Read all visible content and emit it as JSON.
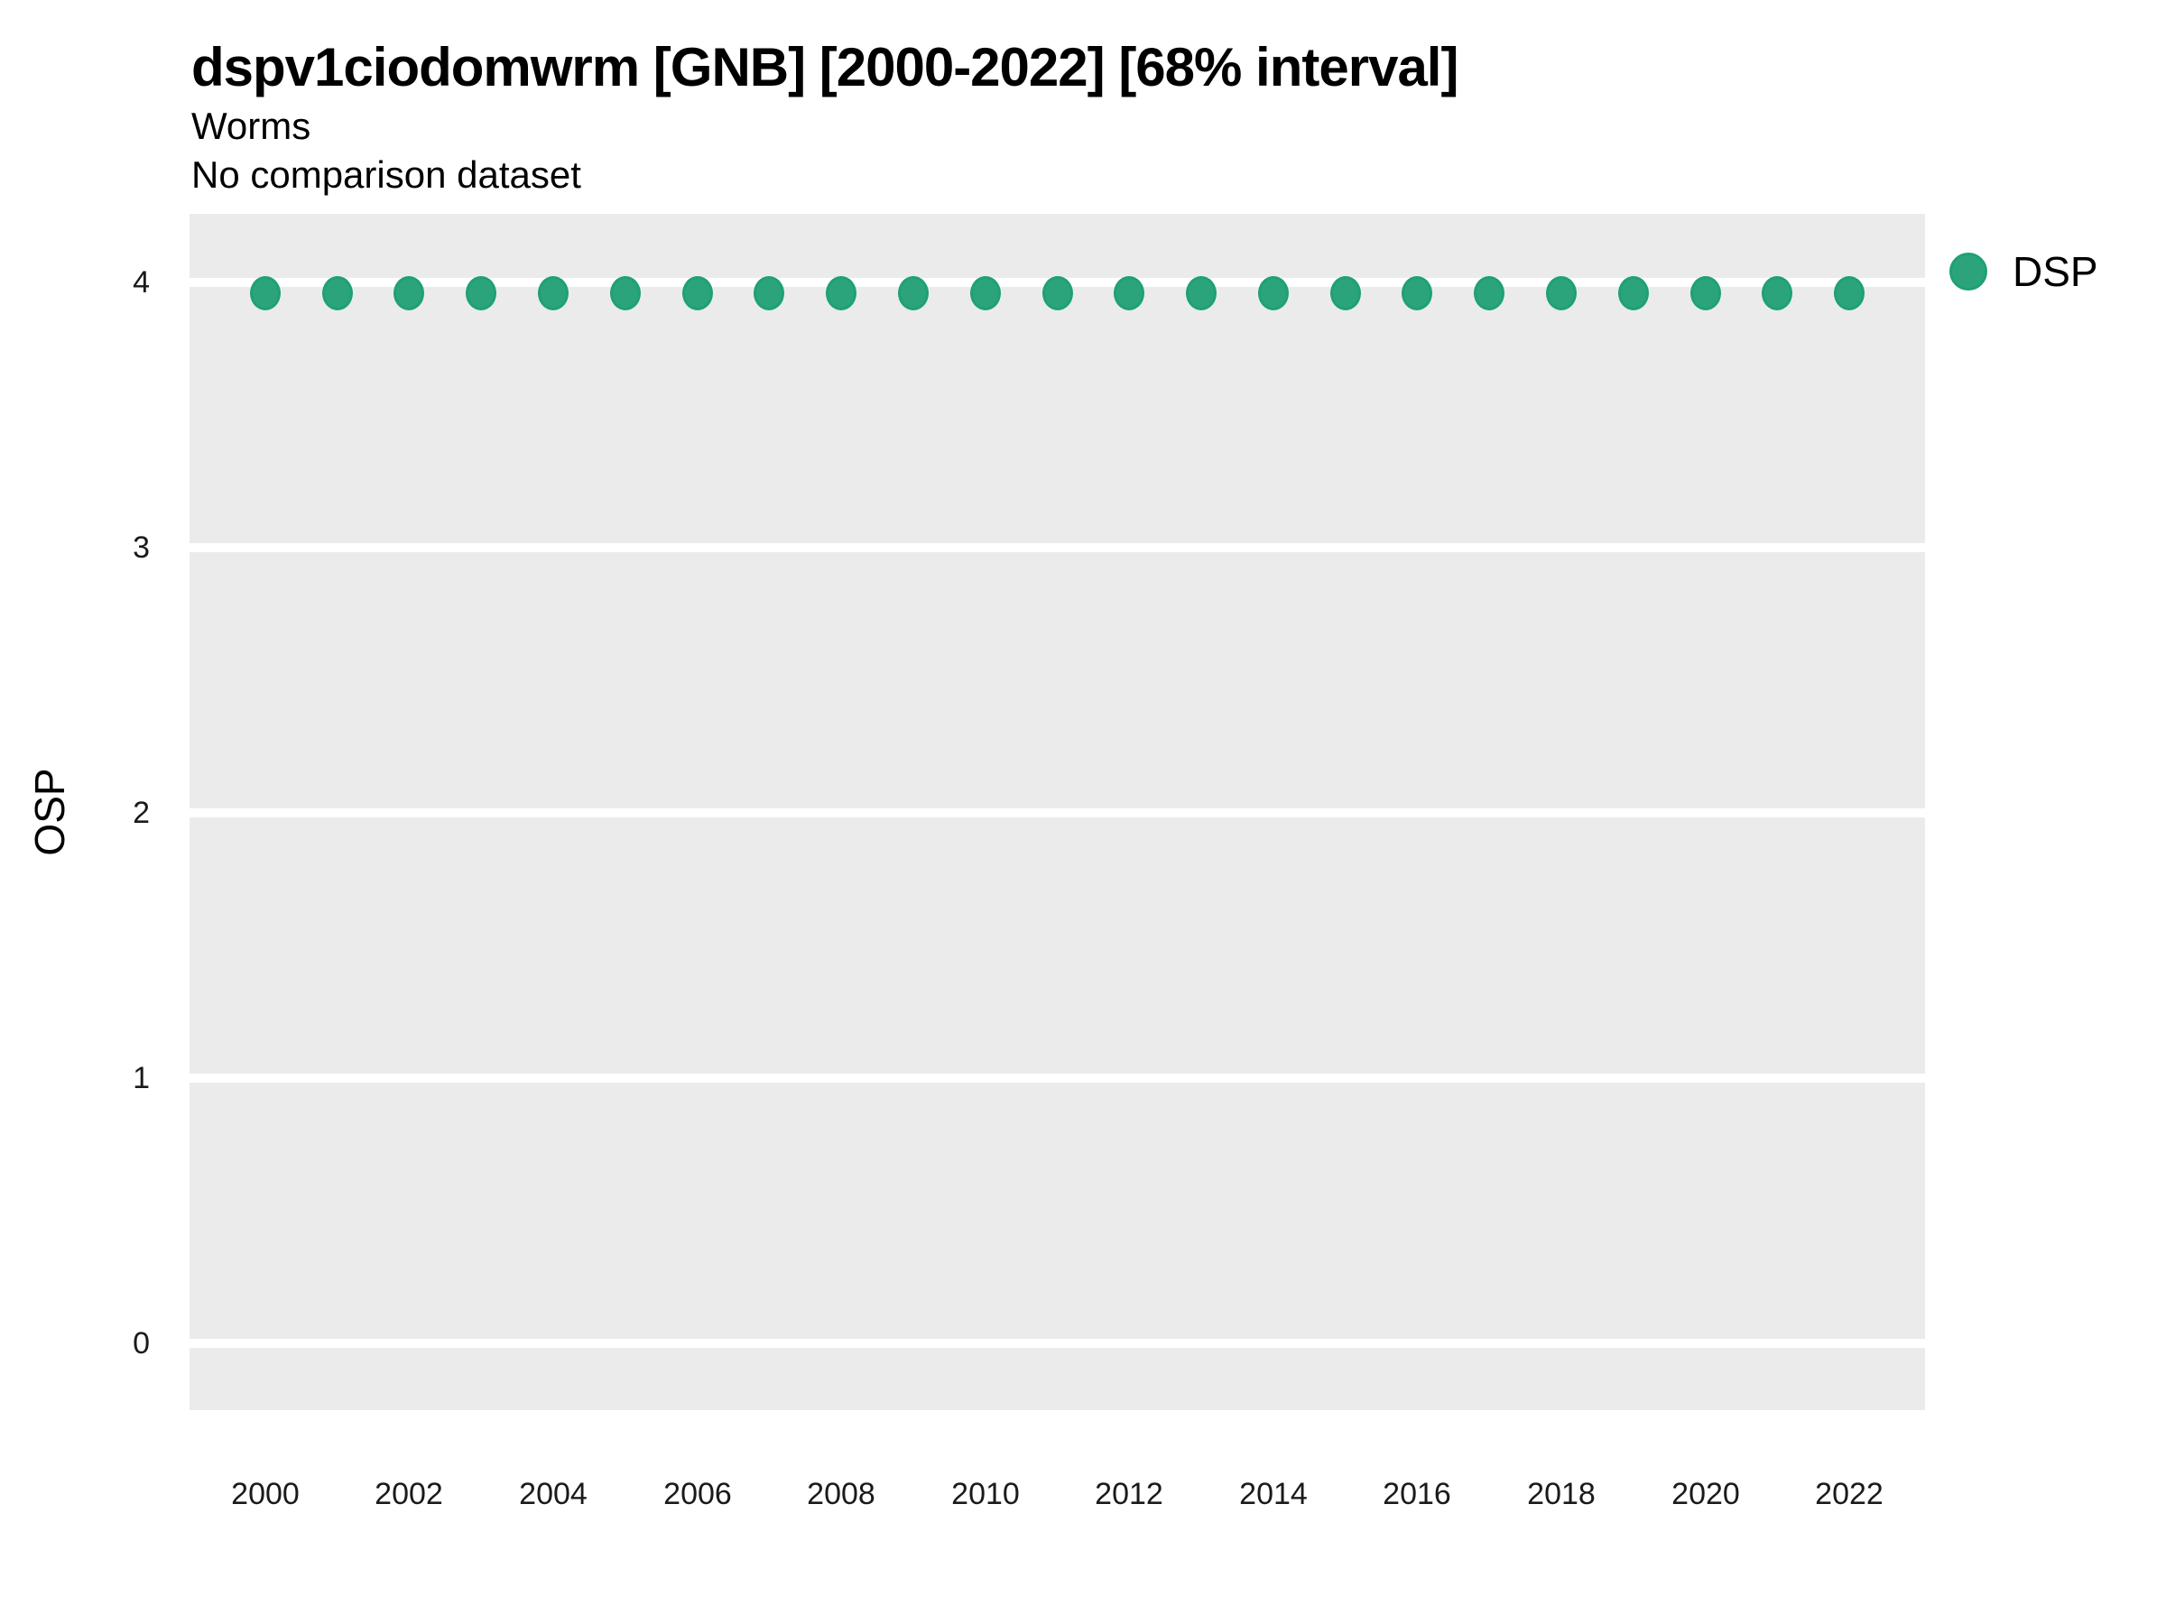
{
  "header": {
    "title": "dspv1ciodomwrm [GNB] [2000-2022] [68% interval]",
    "subtitle_line1": "Worms",
    "subtitle_line2": "No comparison dataset"
  },
  "colors": {
    "panel_background": "#EBEBEB",
    "gridline": "#FFFFFF",
    "point_fill": "#2BA47C",
    "point_stroke": "#1EA173",
    "text": "#000000",
    "tick_text": "#1A1A1A"
  },
  "legend": {
    "items": [
      {
        "label": "DSP",
        "color": "#2BA47C",
        "stroke": "#1EA173"
      }
    ],
    "position": "right"
  },
  "y_axis": {
    "title": "OSP",
    "ticks": [
      0,
      1,
      2,
      3,
      4
    ]
  },
  "x_axis": {
    "title": "",
    "ticks": [
      2000,
      2002,
      2004,
      2006,
      2008,
      2010,
      2012,
      2014,
      2016,
      2018,
      2020,
      2022
    ]
  },
  "chart_data": {
    "type": "scatter",
    "title": "dspv1ciodomwrm [GNB] [2000-2022] [68% interval]",
    "subtitle": [
      "Worms",
      "No comparison dataset"
    ],
    "xlabel": "",
    "ylabel": "OSP",
    "x": [
      2000,
      2001,
      2002,
      2003,
      2004,
      2005,
      2006,
      2007,
      2008,
      2009,
      2010,
      2011,
      2012,
      2013,
      2014,
      2015,
      2016,
      2017,
      2018,
      2019,
      2020,
      2021,
      2022
    ],
    "series": [
      {
        "name": "DSP",
        "values": [
          3.96,
          3.96,
          3.96,
          3.96,
          3.96,
          3.96,
          3.96,
          3.96,
          3.96,
          3.96,
          3.96,
          3.96,
          3.96,
          3.96,
          3.96,
          3.96,
          3.96,
          3.96,
          3.96,
          3.96,
          3.96,
          3.96,
          3.96
        ],
        "color": "#2BA47C"
      }
    ],
    "xlim": [
      1998.95,
      2023.05
    ],
    "ylim": [
      -0.25,
      4.26
    ],
    "yticks": [
      0,
      1,
      2,
      3,
      4
    ],
    "xticks": [
      2000,
      2002,
      2004,
      2006,
      2008,
      2010,
      2012,
      2014,
      2016,
      2018,
      2020,
      2022
    ],
    "grid": "horizontal-major-only",
    "legend_position": "right"
  }
}
